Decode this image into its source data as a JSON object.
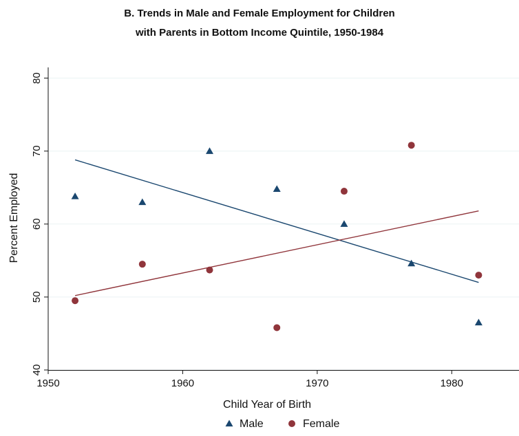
{
  "chart_data": {
    "type": "scatter",
    "title_lines": [
      "B. Trends in Male and Female Employment for Children",
      "with Parents in Bottom Income Quintile, 1950-1984"
    ],
    "xlabel": "Child Year of Birth",
    "ylabel": "Percent Employed",
    "xlim": [
      1950,
      1985
    ],
    "ylim": [
      40,
      81
    ],
    "x_ticks": [
      1950,
      1960,
      1970,
      1980
    ],
    "y_ticks": [
      40,
      50,
      60,
      70,
      80
    ],
    "grid": "horizontal",
    "legend_position": "bottom",
    "series": [
      {
        "name": "Male",
        "marker": "triangle",
        "color": "#1a476f",
        "points": [
          {
            "x": 1952,
            "y": 63.8
          },
          {
            "x": 1957,
            "y": 63.0
          },
          {
            "x": 1962,
            "y": 70.0
          },
          {
            "x": 1967,
            "y": 64.8
          },
          {
            "x": 1972,
            "y": 60.0
          },
          {
            "x": 1977,
            "y": 54.6
          },
          {
            "x": 1982,
            "y": 46.5
          }
        ],
        "fit_line": [
          {
            "x": 1952,
            "y": 68.8
          },
          {
            "x": 1982,
            "y": 52.0
          }
        ]
      },
      {
        "name": "Female",
        "marker": "circle",
        "color": "#90353b",
        "points": [
          {
            "x": 1952,
            "y": 49.5
          },
          {
            "x": 1957,
            "y": 54.5
          },
          {
            "x": 1962,
            "y": 53.7
          },
          {
            "x": 1967,
            "y": 45.8
          },
          {
            "x": 1972,
            "y": 64.5
          },
          {
            "x": 1977,
            "y": 70.8
          },
          {
            "x": 1982,
            "y": 53.0
          }
        ],
        "fit_line": [
          {
            "x": 1952,
            "y": 50.2
          },
          {
            "x": 1982,
            "y": 61.8
          }
        ]
      }
    ]
  }
}
